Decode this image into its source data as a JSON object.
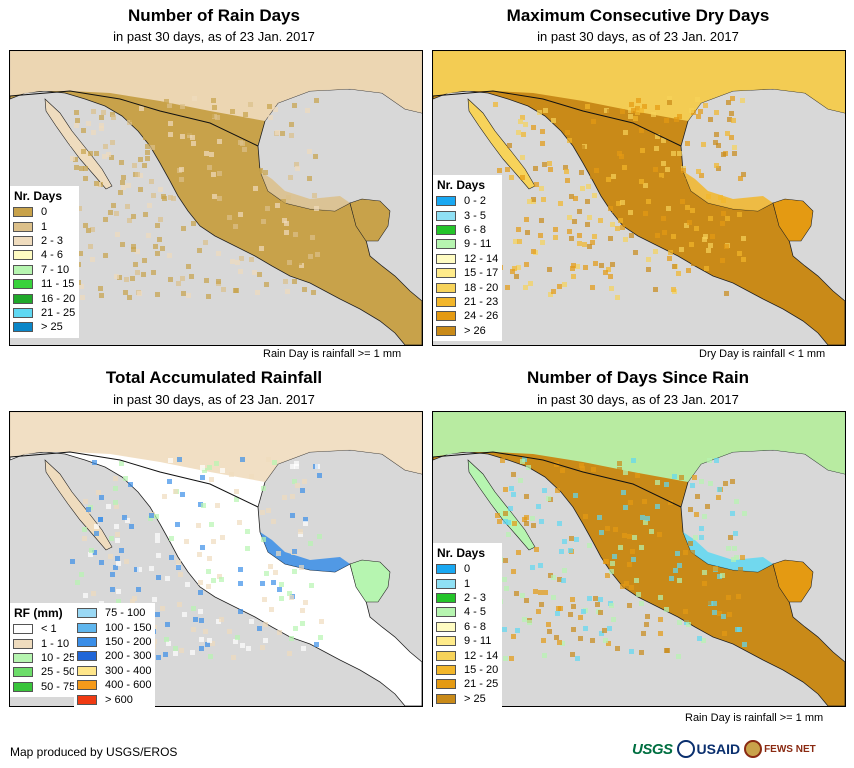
{
  "panels": [
    {
      "title": "Number of Rain Days",
      "subtitle": "in past 30 days, as of 23 Jan. 2017",
      "note": "Rain Day is rainfall >= 1 mm",
      "legend_title": "Nr. Days",
      "legend": [
        {
          "label": "0",
          "color": "#c8a24a"
        },
        {
          "label": "1",
          "color": "#dcc08a"
        },
        {
          "label": "2 - 3",
          "color": "#efdcbe"
        },
        {
          "label": "4 - 6",
          "color": "#fffcc2"
        },
        {
          "label": "7 - 10",
          "color": "#b6f5b0"
        },
        {
          "label": "11 - 15",
          "color": "#39d23c"
        },
        {
          "label": "16 - 20",
          "color": "#1fa82a"
        },
        {
          "label": "21 - 25",
          "color": "#5fd8f2"
        },
        {
          "label": "> 25",
          "color": "#0a86c8"
        }
      ]
    },
    {
      "title": "Maximum Consecutive Dry Days",
      "subtitle": "in past 30 days, as of 23 Jan. 2017",
      "note": "Dry Day is rainfall < 1 mm",
      "legend_title": "Nr. Days",
      "legend": [
        {
          "label": "0 - 2",
          "color": "#19a8f2"
        },
        {
          "label": "3 - 5",
          "color": "#8fe0f4"
        },
        {
          "label": "6 - 8",
          "color": "#23c429"
        },
        {
          "label": "9 - 11",
          "color": "#b6f5b0"
        },
        {
          "label": "12 - 14",
          "color": "#fffcc2"
        },
        {
          "label": "15 - 17",
          "color": "#ffeb8a"
        },
        {
          "label": "18 - 20",
          "color": "#f7d35a"
        },
        {
          "label": "21 - 23",
          "color": "#f2b62a"
        },
        {
          "label": "24 - 26",
          "color": "#e49a12"
        },
        {
          "label": "> 26",
          "color": "#c98a18"
        }
      ]
    },
    {
      "title": "Total Accumulated Rainfall",
      "subtitle": "in past 30 days, as of 23 Jan. 2017",
      "note": "",
      "legend_title": "RF (mm)",
      "legend": [
        {
          "label": "< 1",
          "color": "#ffffff"
        },
        {
          "label": "1 - 10",
          "color": "#efdcbe"
        },
        {
          "label": "10 - 25",
          "color": "#b6f5b0"
        },
        {
          "label": "25 - 50",
          "color": "#6ddd6a"
        },
        {
          "label": "50 - 75",
          "color": "#39c43b"
        }
      ],
      "legend2": [
        {
          "label": "75 - 100",
          "color": "#9ad8f4"
        },
        {
          "label": "100 - 150",
          "color": "#5fb6ee"
        },
        {
          "label": "150 - 200",
          "color": "#3a8ee8"
        },
        {
          "label": "200 - 300",
          "color": "#1f66d8"
        },
        {
          "label": "300 - 400",
          "color": "#ffe68a"
        },
        {
          "label": "400 - 600",
          "color": "#f59a1a"
        },
        {
          "label": "> 600",
          "color": "#f03a12"
        }
      ]
    },
    {
      "title": "Number of Days Since Rain",
      "subtitle": "in past 30 days, as of 23 Jan. 2017",
      "note": "Rain Day is rainfall >= 1 mm",
      "legend_title": "Nr. Days",
      "legend": [
        {
          "label": "0",
          "color": "#19a8f2"
        },
        {
          "label": "1",
          "color": "#8fe0f4"
        },
        {
          "label": "2 - 3",
          "color": "#23c429"
        },
        {
          "label": "4 - 5",
          "color": "#b6f5b0"
        },
        {
          "label": "6 - 8",
          "color": "#fffcc2"
        },
        {
          "label": "9 - 11",
          "color": "#ffeb8a"
        },
        {
          "label": "12 - 14",
          "color": "#f7d35a"
        },
        {
          "label": "15 - 20",
          "color": "#f2b62a"
        },
        {
          "label": "21 - 25",
          "color": "#e49a12"
        },
        {
          "label": "> 25",
          "color": "#c98a18"
        }
      ]
    }
  ],
  "map_style": {
    "ocean_color": "#d8d8d8",
    "panel_land_colors": [
      {
        "base": "#c8a24a",
        "north": "#efdcbe",
        "east": "#c8a24a",
        "gulf_coast": "#dcc08a"
      },
      {
        "base": "#c98a18",
        "north": "#f7d35a",
        "east": "#e49a12",
        "gulf_coast": "#f2b62a"
      },
      {
        "base": "#ffffff",
        "north": "#efdcbe",
        "east": "#b6f5b0",
        "gulf_coast": "#3a8ee8"
      },
      {
        "base": "#c98a18",
        "north": "#b6f5b0",
        "east": "#e49a12",
        "gulf_coast": "#5fd8f2"
      }
    ]
  },
  "footer": {
    "credit": "Map produced by USGS/EROS",
    "logo_usgs": "USGS",
    "logo_usaid": "USAID",
    "logo_fews": "FEWS NET"
  }
}
